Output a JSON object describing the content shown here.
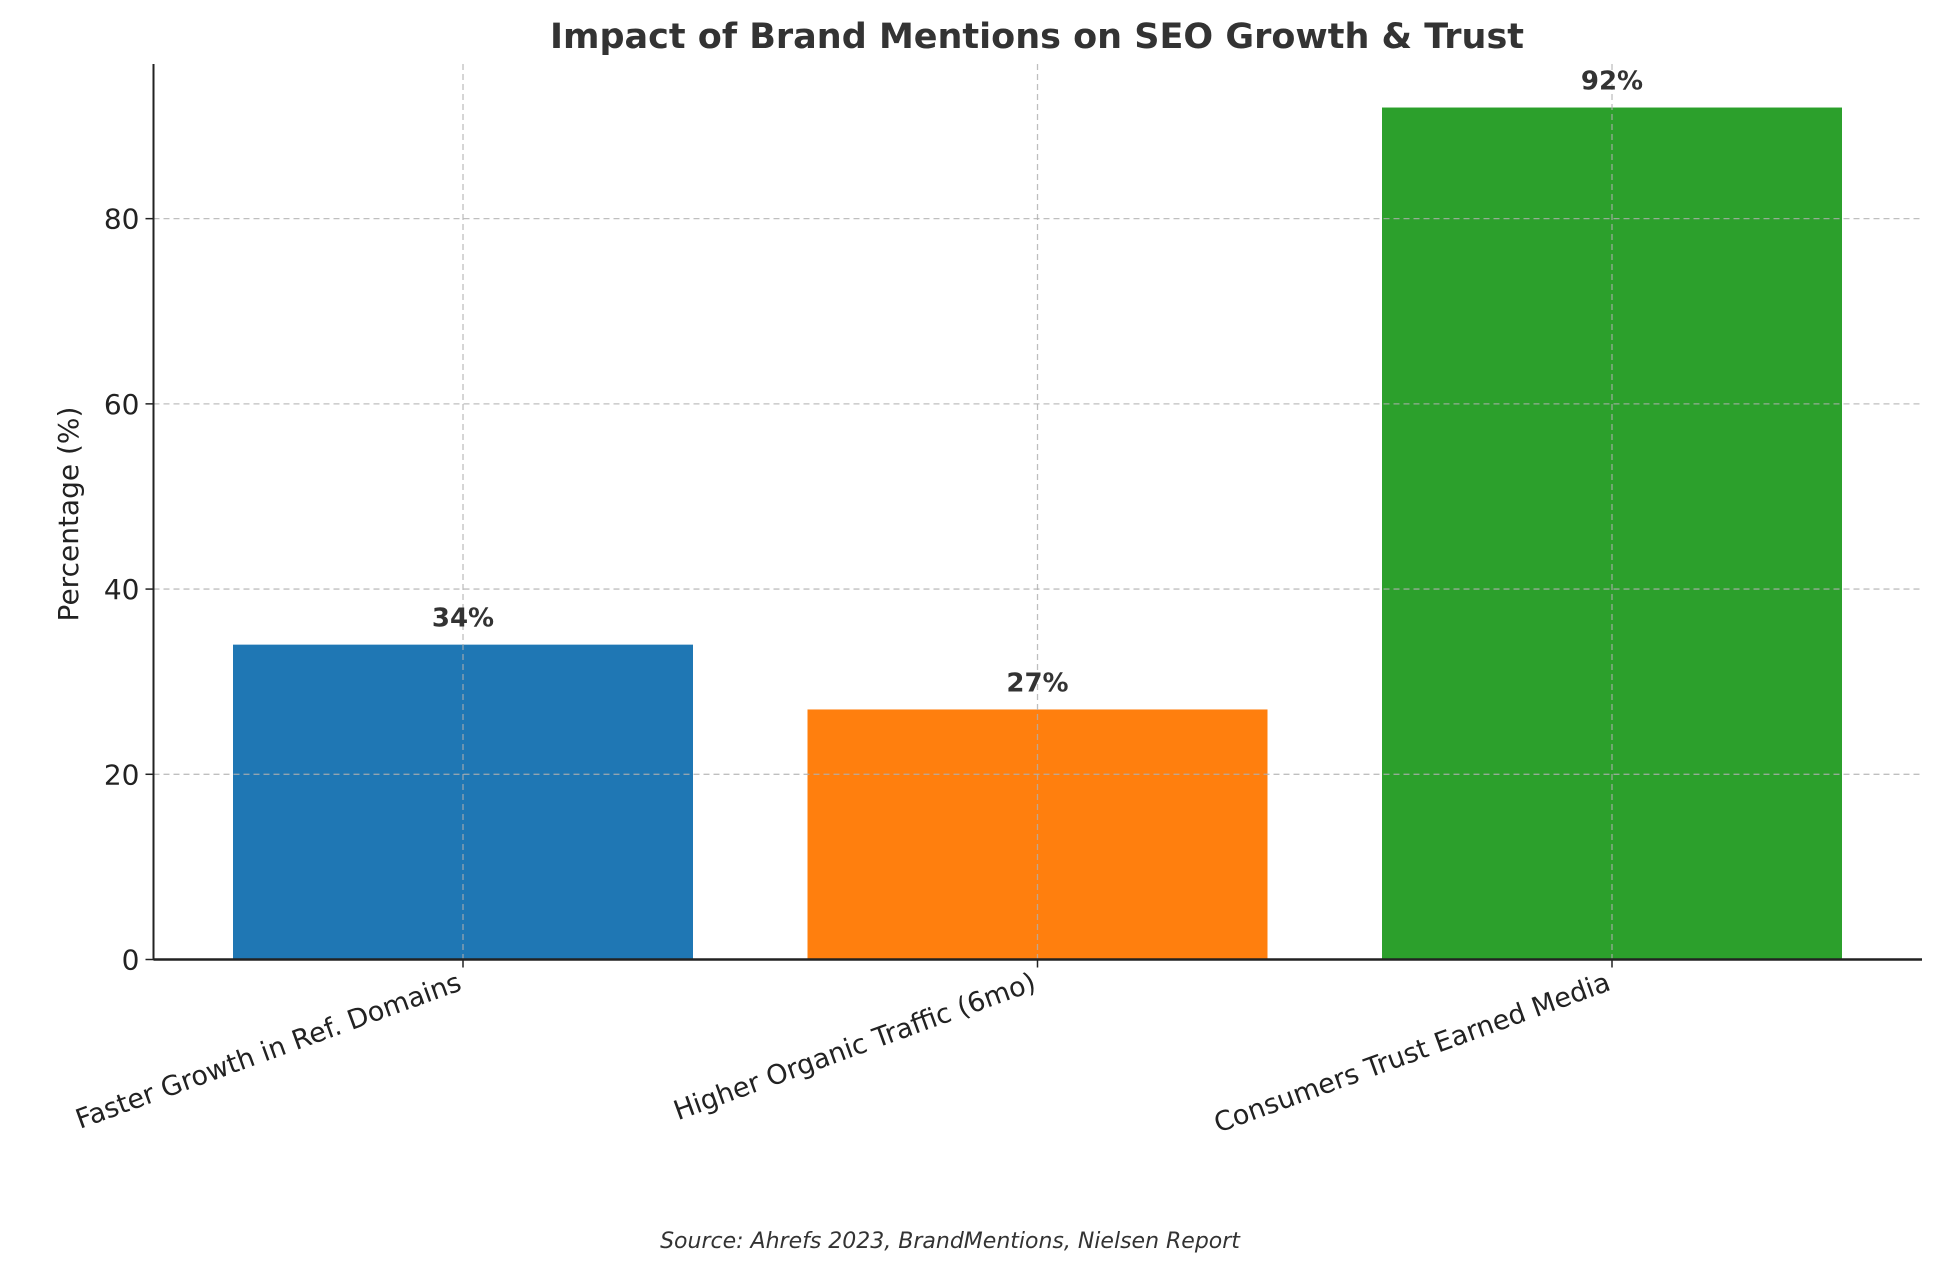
{
  "chart_data": {
    "type": "bar",
    "title": "Impact of Brand Mentions on SEO Growth & Trust",
    "xlabel": "",
    "ylabel": "Percentage (%)",
    "categories": [
      "Faster Growth in Ref. Domains",
      "Higher Organic Traffic (6mo)",
      "Consumers Trust Earned Media"
    ],
    "values": [
      34,
      27,
      92
    ],
    "data_labels": [
      "34%",
      "27%",
      "92%"
    ],
    "colors": [
      "#1f77b4",
      "#ff7f0e",
      "#2ca02c"
    ],
    "ylim": [
      0,
      96.7
    ],
    "yticks": [
      0,
      20,
      40,
      60,
      80
    ],
    "ytick_labels": [
      "0",
      "20",
      "40",
      "60",
      "80"
    ],
    "grid": true,
    "source": "Source: Ahrefs 2023, BrandMentions, Nielsen Report"
  }
}
